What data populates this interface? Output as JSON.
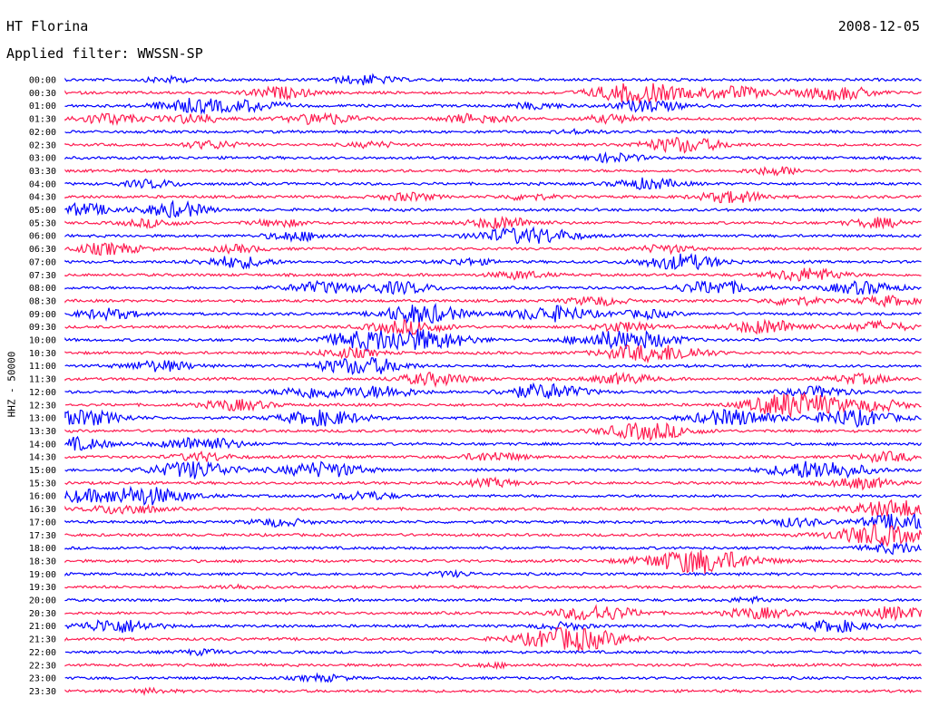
{
  "header": {
    "station": "HT Florina",
    "date": "2008-12-05",
    "filter": "Applied filter: WWSSN-SP"
  },
  "chart_data": {
    "type": "line",
    "title": "HT Florina",
    "ylabel": "HHZ - 50000",
    "colors": {
      "odd": "#0000ff",
      "even": "#ff1b50"
    },
    "rows": [
      "00:00",
      "00:30",
      "01:00",
      "01:30",
      "02:00",
      "02:30",
      "03:00",
      "03:30",
      "04:00",
      "04:30",
      "05:00",
      "05:30",
      "06:00",
      "06:30",
      "07:00",
      "07:30",
      "08:00",
      "08:30",
      "09:00",
      "09:30",
      "10:00",
      "10:30",
      "11:00",
      "11:30",
      "12:00",
      "12:30",
      "13:00",
      "13:30",
      "14:00",
      "14:30",
      "15:00",
      "15:30",
      "16:00",
      "16:30",
      "17:00",
      "17:30",
      "18:00",
      "18:30",
      "19:00",
      "19:30",
      "20:00",
      "20:30",
      "21:00",
      "21:30",
      "22:00",
      "22:30",
      "23:00",
      "23:30"
    ],
    "event_positions_fraction": [
      [
        0.35,
        0.12
      ],
      [
        0.25,
        0.67,
        0.78,
        0.9
      ],
      [
        0.22,
        0.15,
        0.55,
        0.68
      ],
      [
        0.05,
        0.5,
        0.3,
        0.15,
        0.47,
        0.64
      ],
      [
        0.6
      ],
      [
        0.17,
        0.72,
        0.36
      ],
      [
        0.64
      ],
      [
        0.83
      ],
      [
        0.1,
        0.68
      ],
      [
        0.78,
        0.4,
        0.54
      ],
      [
        0.12,
        0.02,
        0.14
      ],
      [
        0.1,
        0.25,
        0.51,
        0.95
      ],
      [
        0.52,
        0.27,
        0.57
      ],
      [
        0.05,
        0.2,
        0.7
      ],
      [
        0.72,
        0.2,
        0.47
      ],
      [
        0.53,
        0.88,
        0.85
      ],
      [
        0.3,
        0.39,
        0.76,
        0.93
      ],
      [
        0.62,
        0.85,
        0.96
      ],
      [
        0.05,
        0.4,
        0.43,
        0.57,
        0.68
      ],
      [
        0.4,
        0.65,
        0.82,
        0.95
      ],
      [
        0.35,
        0.42,
        0.63,
        0.68
      ],
      [
        0.67,
        0.33,
        0.72
      ],
      [
        0.11,
        0.33,
        0.37
      ],
      [
        0.43,
        0.65,
        0.93
      ],
      [
        0.29,
        0.37,
        0.56,
        0.88
      ],
      [
        0.2,
        0.83,
        0.87,
        0.95
      ],
      [
        0.02,
        0.3,
        0.78,
        0.92
      ],
      [
        0.68
      ],
      [
        0.01,
        0.16
      ],
      [
        0.16,
        0.5,
        0.96
      ],
      [
        0.15,
        0.3,
        0.88
      ],
      [
        0.93,
        0.5
      ],
      [
        0.01,
        0.09,
        0.35
      ],
      [
        0.07,
        0.97
      ],
      [
        0.25,
        0.85,
        0.98
      ],
      [
        0.95
      ],
      [
        0.97
      ],
      [
        0.74
      ],
      [
        0.45
      ],
      [
        0.2
      ],
      [
        0.8
      ],
      [
        0.62,
        0.81,
        0.97
      ],
      [
        0.06,
        0.9,
        0.58
      ],
      [
        0.59
      ],
      [
        0.16
      ],
      [
        0.5
      ],
      [
        0.3
      ],
      [
        0.1
      ]
    ],
    "event_amplitudes_rel": [
      [
        1.2,
        0.7
      ],
      [
        1.4,
        2.6,
        1.6,
        1.8
      ],
      [
        1.3,
        1.8,
        0.8,
        1.5
      ],
      [
        1.4,
        0.6,
        1.5,
        1.2,
        1.0,
        1.0
      ],
      [
        0.5
      ],
      [
        1.0,
        2.0,
        0.7
      ],
      [
        1.1
      ],
      [
        1.0
      ],
      [
        1.0,
        1.4
      ],
      [
        1.5,
        1.0,
        0.8
      ],
      [
        1.2,
        1.5,
        1.0
      ],
      [
        1.0,
        0.9,
        1.5,
        1.2
      ],
      [
        1.8,
        1.2,
        1.2
      ],
      [
        1.5,
        0.9,
        1.0
      ],
      [
        2.0,
        1.5,
        0.8
      ],
      [
        1.0,
        1.2,
        1.0
      ],
      [
        1.5,
        1.5,
        1.8,
        1.6
      ],
      [
        1.1,
        1.1,
        1.2
      ],
      [
        1.3,
        1.4,
        1.6,
        2.0,
        1.0
      ],
      [
        1.8,
        1.2,
        1.8,
        1.3
      ],
      [
        2.2,
        2.4,
        1.8,
        1.6
      ],
      [
        1.9,
        1.2,
        1.3
      ],
      [
        1.4,
        1.7,
        1.2
      ],
      [
        1.6,
        1.3,
        1.2
      ],
      [
        1.6,
        1.5,
        2.0,
        1.3
      ],
      [
        1.4,
        1.7,
        2.2,
        1.3
      ],
      [
        2.0,
        2.0,
        2.1,
        2.1
      ],
      [
        2.2
      ],
      [
        1.6,
        1.8
      ],
      [
        1.1,
        1.2,
        1.2
      ],
      [
        2.2,
        2.0,
        2.5
      ],
      [
        1.4,
        1.0
      ],
      [
        1.3,
        2.4,
        1.1
      ],
      [
        1.4,
        2.3
      ],
      [
        1.0,
        1.1,
        2.2
      ],
      [
        2.6
      ],
      [
        1.3
      ],
      [
        3.2
      ],
      [
        0.6
      ],
      [
        0.5
      ],
      [
        0.6
      ],
      [
        2.0,
        1.4,
        1.6
      ],
      [
        1.8,
        1.5,
        0.9
      ],
      [
        3.0
      ],
      [
        0.6
      ],
      [
        0.5
      ],
      [
        0.8
      ],
      [
        0.5
      ]
    ]
  }
}
